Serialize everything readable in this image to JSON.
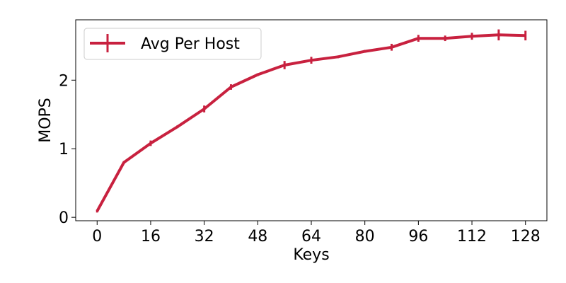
{
  "chart_data": {
    "type": "line",
    "xlabel": "Keys",
    "ylabel": "MOPS",
    "xlim": [
      -6.4,
      134.4
    ],
    "ylim": [
      -0.05,
      2.88
    ],
    "xticks": [
      0,
      16,
      32,
      48,
      64,
      80,
      96,
      112,
      128
    ],
    "yticks": [
      0,
      1,
      2
    ],
    "grid": false,
    "legend_position": "top-left",
    "series": [
      {
        "name": "Avg Per Host",
        "color": "#c8213f",
        "x": [
          0,
          8,
          16,
          24,
          32,
          40,
          48,
          56,
          64,
          72,
          80,
          88,
          96,
          104,
          112,
          120,
          128
        ],
        "y": [
          0.09,
          0.8,
          1.08,
          1.32,
          1.58,
          1.9,
          2.08,
          2.22,
          2.29,
          2.34,
          2.42,
          2.48,
          2.61,
          2.61,
          2.64,
          2.66,
          2.65
        ],
        "err": [
          0.02,
          0.02,
          0.04,
          0.02,
          0.05,
          0.04,
          0.02,
          0.06,
          0.05,
          0.02,
          0.02,
          0.05,
          0.05,
          0.04,
          0.05,
          0.08,
          0.07
        ]
      }
    ]
  }
}
